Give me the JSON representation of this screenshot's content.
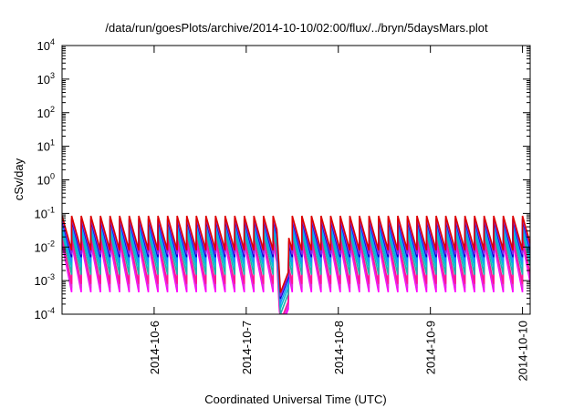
{
  "chart_data": {
    "type": "line",
    "title": "/data/run/goesPlots/archive/2014-10-10/02:00/flux/../bryn/5daysMars.plot",
    "xlabel": "Coordinated Universal Time (UTC)",
    "ylabel": "cSv/day",
    "x_scale": "date",
    "y_scale": "log",
    "xlim": [
      "2014-10-05T00:00",
      "2014-10-10T02:00"
    ],
    "ylim": [
      0.0001,
      10000
    ],
    "x_ticks": [
      "2014-10-6",
      "2014-10-7",
      "2014-10-8",
      "2014-10-9",
      "2014-10-10"
    ],
    "y_ticks": [
      {
        "base": "10",
        "exp": "-4",
        "value": 0.0001
      },
      {
        "base": "10",
        "exp": "-3",
        "value": 0.001
      },
      {
        "base": "10",
        "exp": "-2",
        "value": 0.01
      },
      {
        "base": "10",
        "exp": "-1",
        "value": 0.1
      },
      {
        "base": "10",
        "exp": "0",
        "value": 1
      },
      {
        "base": "10",
        "exp": "1",
        "value": 10
      },
      {
        "base": "10",
        "exp": "2",
        "value": 100
      },
      {
        "base": "10",
        "exp": "3",
        "value": 1000
      },
      {
        "base": "10",
        "exp": "4",
        "value": 10000
      }
    ],
    "grid": false,
    "legend": "none",
    "sawtooth_period_hours": 2.5,
    "dip": {
      "start": "2014-10-07T08:00",
      "minimum": "2014-10-07T09:00",
      "end": "2014-10-07T11:00"
    },
    "series": [
      {
        "color": "#ff00ff",
        "peak": 0.013,
        "trough": 0.00045
      },
      {
        "color": "#dd33dd",
        "peak": 0.016,
        "trough": 0.0006
      },
      {
        "color": "#ff1493",
        "peak": 0.02,
        "trough": 0.0008
      },
      {
        "color": "#20b2aa",
        "peak": 0.028,
        "trough": 0.0015
      },
      {
        "color": "#00bcd4",
        "peak": 0.036,
        "trough": 0.0025
      },
      {
        "color": "#1e90ff",
        "peak": 0.05,
        "trough": 0.0035
      },
      {
        "color": "#0000cc",
        "peak": 0.065,
        "trough": 0.005
      },
      {
        "color": "#8a2be2",
        "peak": 0.072,
        "trough": 0.006
      },
      {
        "color": "#dd0000",
        "peak": 0.085,
        "trough": 0.008
      }
    ]
  }
}
